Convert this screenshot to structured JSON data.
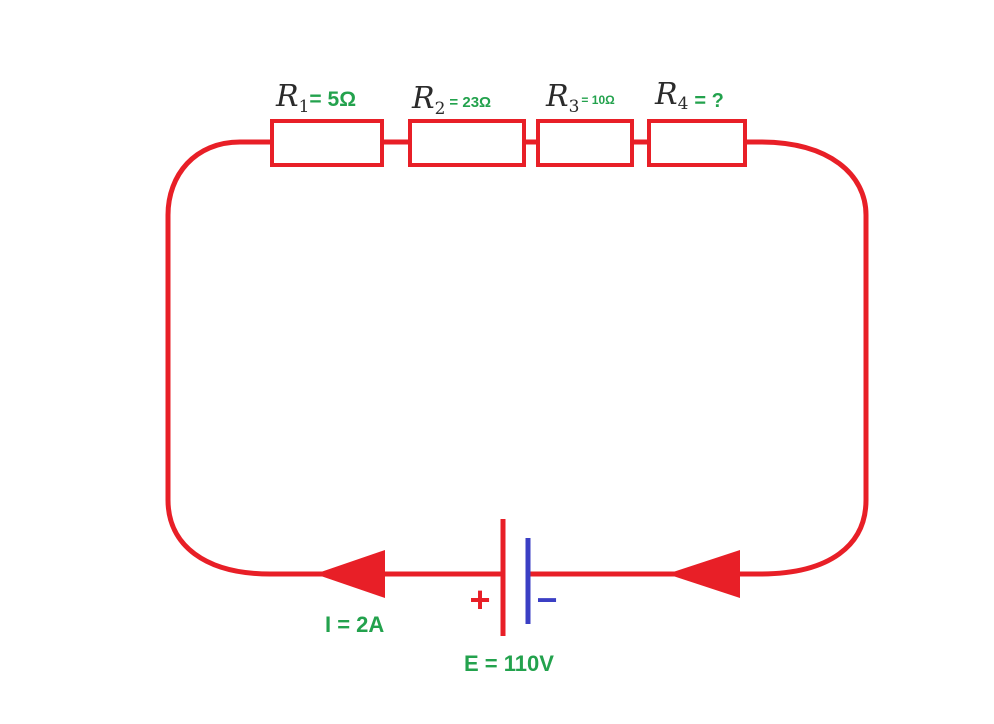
{
  "colors": {
    "wire": "#e81f27",
    "label_green": "#23a24d",
    "symbol_dark": "#2b2b2b",
    "negative_plate": "#3b3fc4"
  },
  "resistors": [
    {
      "symbol": "R",
      "subscript": "1",
      "value": "= 5Ω"
    },
    {
      "symbol": "R",
      "subscript": "2",
      "value": "= 23Ω"
    },
    {
      "symbol": "R",
      "subscript": "3",
      "value": "= 10Ω"
    },
    {
      "symbol": "R",
      "subscript": "4",
      "value": "= ?"
    }
  ],
  "current_label": "I = 2A",
  "emf_label": "E = 110V",
  "battery": {
    "positive_sign": "+",
    "negative_sign": "−"
  }
}
